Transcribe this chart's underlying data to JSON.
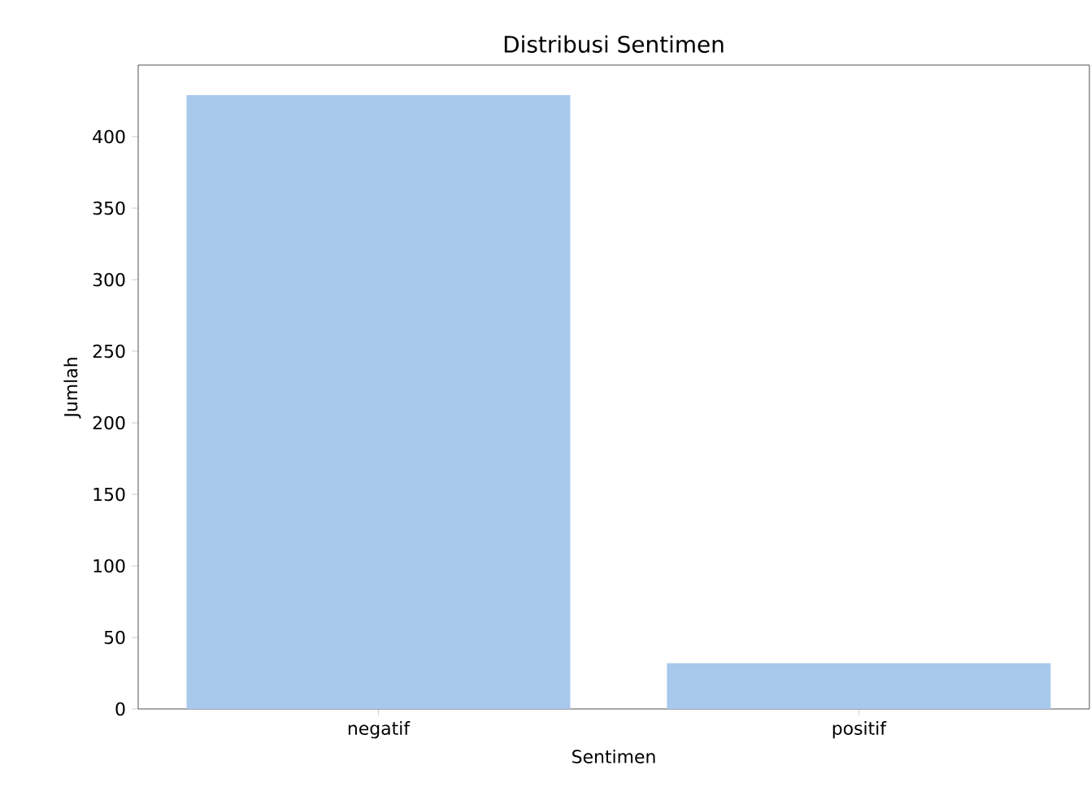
{
  "chart_data": {
    "type": "bar",
    "title": "Distribusi Sentimen",
    "xlabel": "Sentimen",
    "ylabel": "Jumlah",
    "categories": [
      "negatif",
      "positif"
    ],
    "values": [
      429,
      32
    ],
    "color": "#a8c8ec",
    "ylim": [
      0,
      450
    ],
    "yticks": [
      0,
      50,
      100,
      150,
      200,
      250,
      300,
      350,
      400
    ],
    "grid": false
  }
}
